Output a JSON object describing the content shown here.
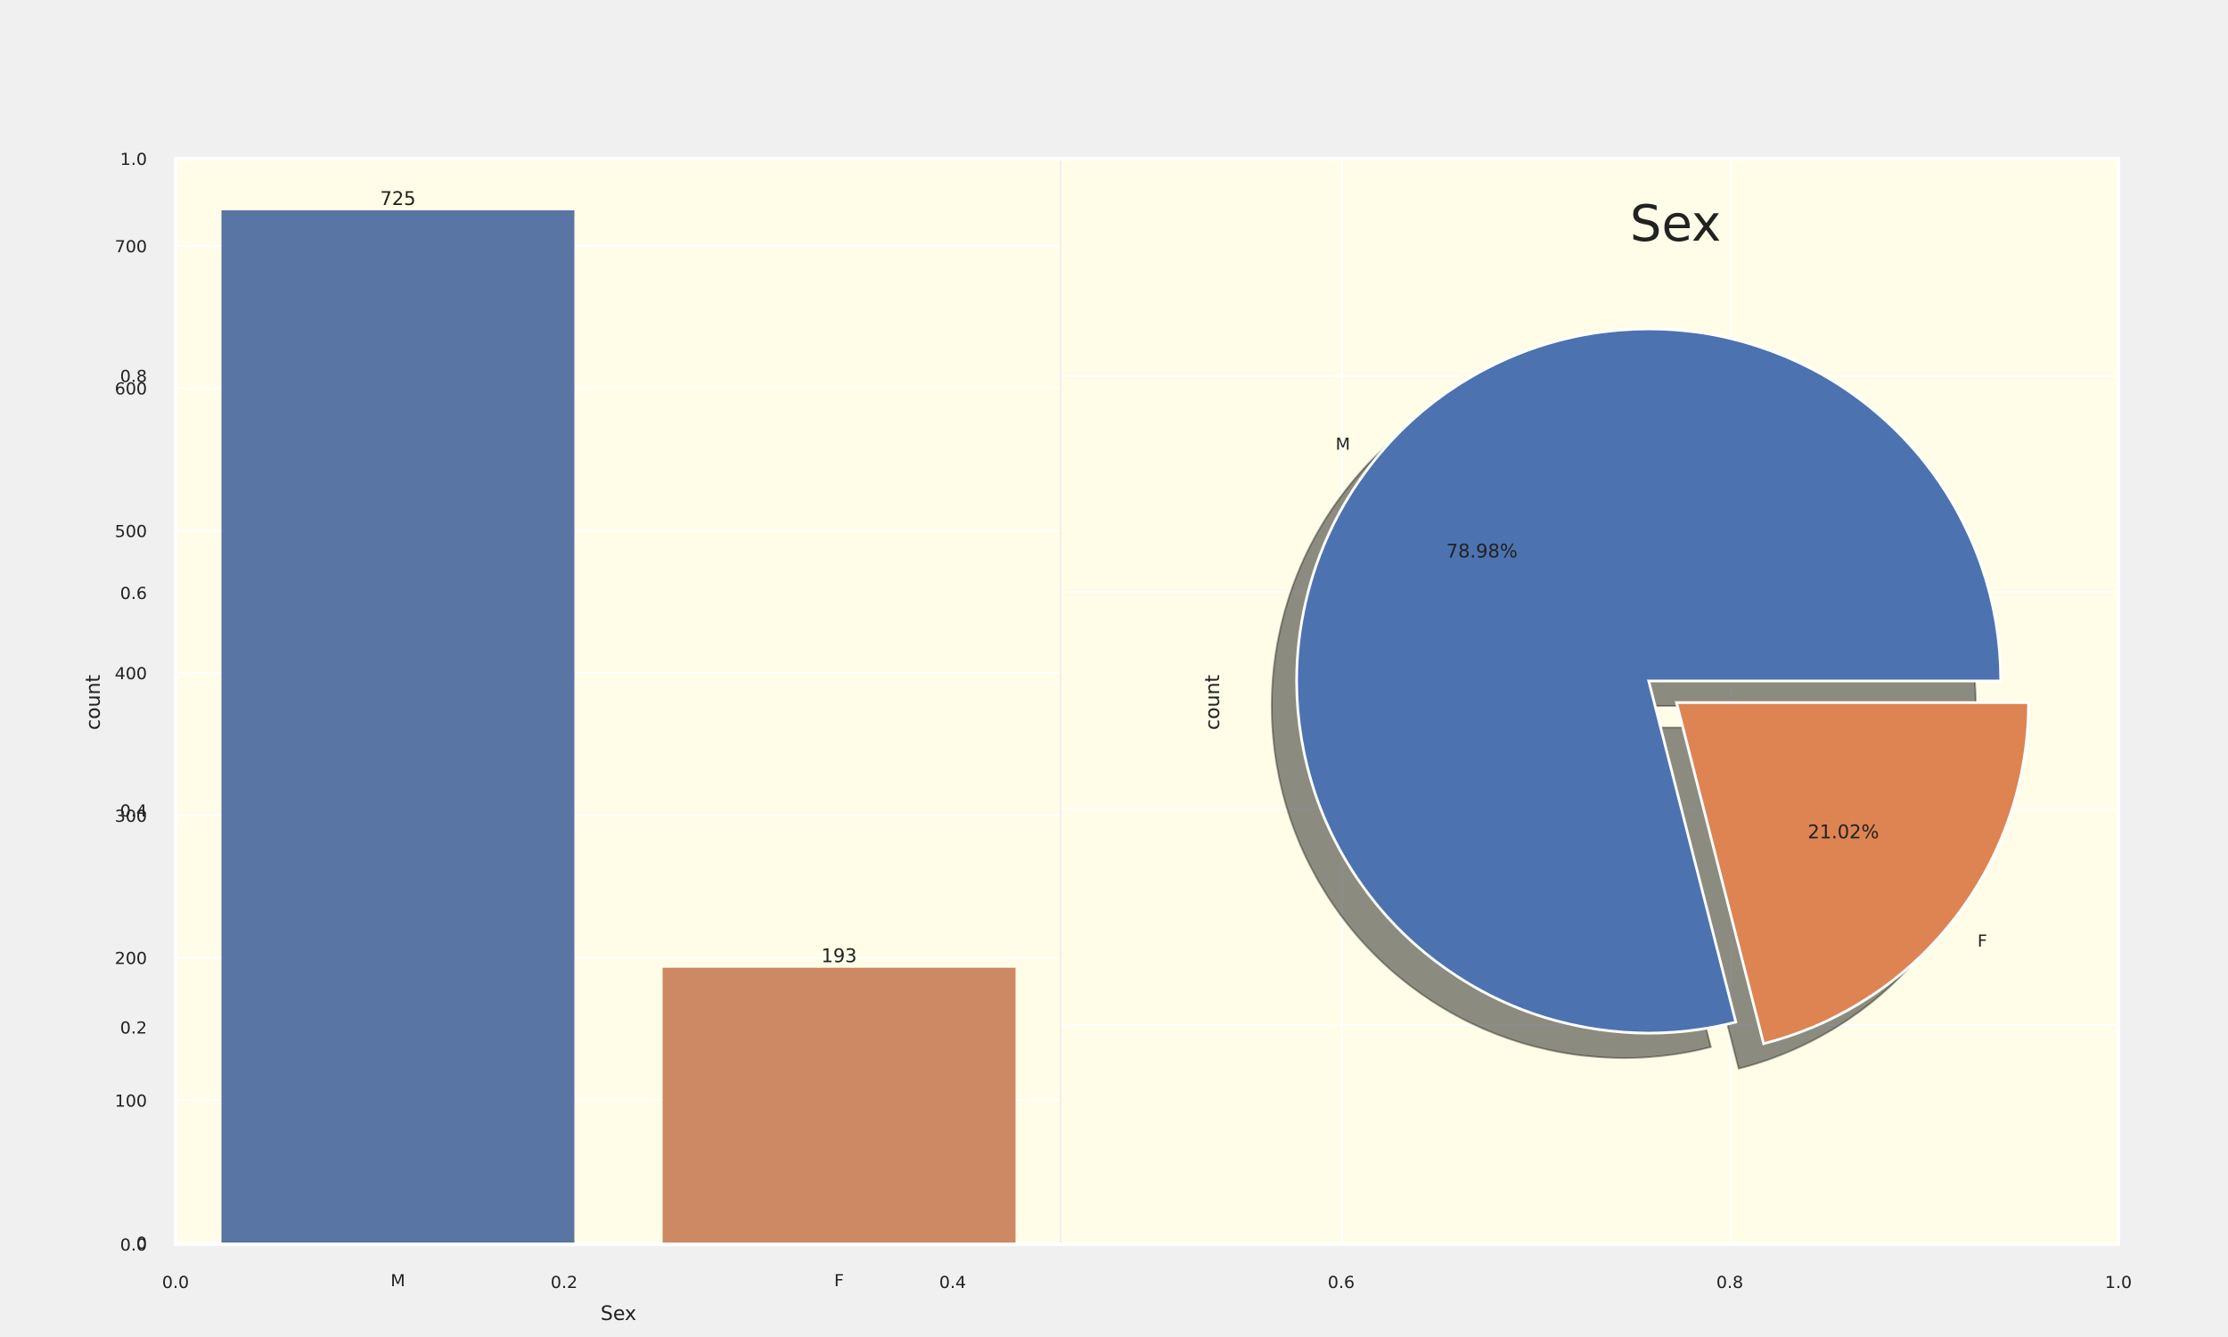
{
  "figure": {
    "background_color": "#f0f0f0",
    "panel_color": "#fffde7",
    "grid_color": "#ffffff",
    "outer_x_ticks": [
      "0.0",
      "0.2",
      "0.4",
      "0.6",
      "0.8",
      "1.0"
    ],
    "outer_y_ticks": [
      "0.0",
      "0.2",
      "0.4",
      "0.6",
      "0.8",
      "1.0"
    ]
  },
  "chart_data": [
    {
      "type": "bar",
      "categories": [
        "M",
        "F"
      ],
      "values": [
        725,
        193
      ],
      "value_labels": [
        "725",
        "193"
      ],
      "colors": [
        "#5875a4",
        "#cc8963"
      ],
      "xlabel": "Sex",
      "ylabel": "count",
      "ylim": [
        0,
        760
      ],
      "y_ticks": [
        0,
        100,
        200,
        300,
        400,
        500,
        600,
        700
      ],
      "y_tick_labels": [
        "0",
        "100",
        "200",
        "300",
        "400",
        "500",
        "600",
        "700"
      ],
      "grid": true
    },
    {
      "type": "pie",
      "title": "Sex",
      "labels": [
        "M",
        "F"
      ],
      "values": [
        78.98,
        21.02
      ],
      "percent_labels": [
        "78.98%",
        "21.02%"
      ],
      "colors": [
        "#4c72b0",
        "#dd8452"
      ],
      "explode": [
        0,
        0.1
      ],
      "shadow": true,
      "ylabel": "count",
      "grid": true
    }
  ]
}
